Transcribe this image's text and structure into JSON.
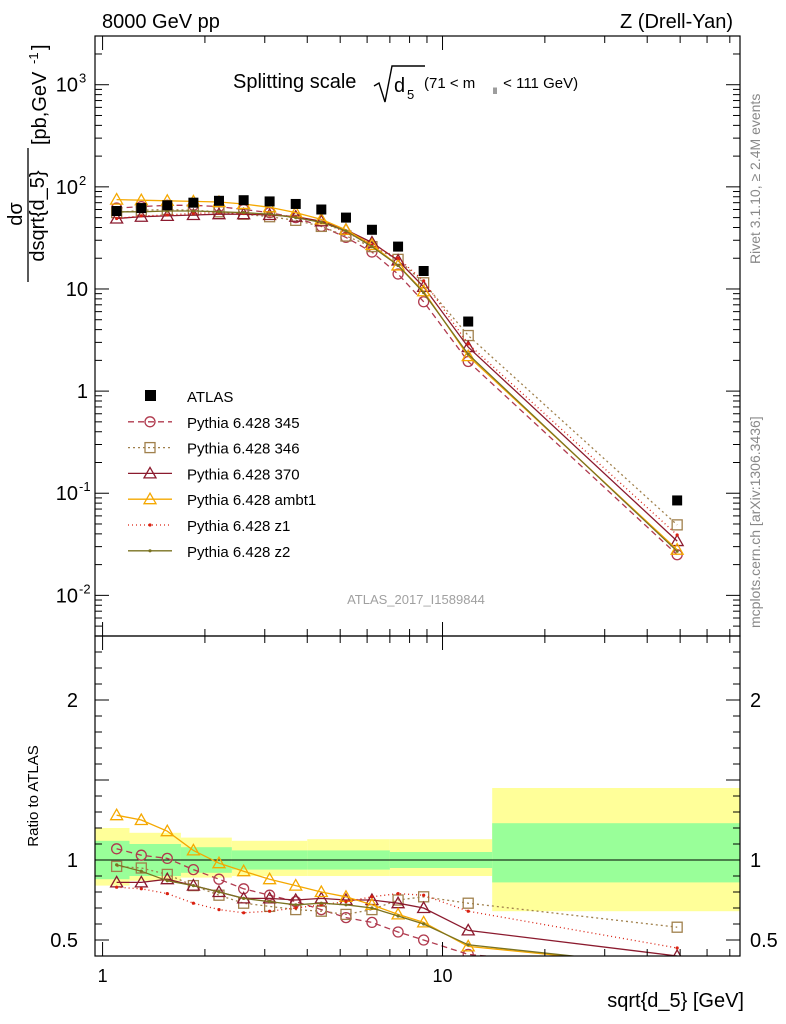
{
  "header": {
    "left": "8000 GeV pp",
    "right": "Z (Drell-Yan)"
  },
  "title": {
    "main": "Splitting scale",
    "sqrt_var": "d",
    "sqrt_sub": "5",
    "range_open": "(71 < m",
    "range_sub": "ll",
    "range_close": " < 111 GeV)"
  },
  "side_labels": {
    "rivet": "Rivet 3.1.10, ≥ 2.4M events",
    "mcplots": "mcplots.cern.ch [arXiv:1306.3436]"
  },
  "analysis_label": "ATLAS_2017_I1589844",
  "ylabel_main": {
    "num": "dσ",
    "den": "dsqrt{d_5}",
    "unit": "[pb,GeV",
    "unit_sup": "-1",
    "unit_close": "]"
  },
  "ylabel_ratio": "Ratio to ATLAS",
  "xlabel": "sqrt{d_5} [GeV]",
  "chart_data": {
    "type": "scatter",
    "x_scale": "log",
    "main_y_scale": "log",
    "xlim": [
      0.95,
      75
    ],
    "main_ylim": [
      0.004,
      3000
    ],
    "ratio_ylim": [
      0.4,
      2.4
    ],
    "x": [
      1.1,
      1.3,
      1.55,
      1.85,
      2.2,
      2.6,
      3.1,
      3.7,
      4.4,
      5.2,
      6.2,
      7.4,
      8.8,
      11.9,
      49.0
    ],
    "x_ticks": [
      {
        "v": 1,
        "label": "1"
      },
      {
        "v": 10,
        "label": "10"
      }
    ],
    "main_y_ticks": [
      {
        "v": 0.01,
        "base": "10",
        "exp": "-2"
      },
      {
        "v": 0.1,
        "base": "10",
        "exp": "-1"
      },
      {
        "v": 1,
        "base": "1",
        "exp": ""
      },
      {
        "v": 10,
        "base": "10",
        "exp": ""
      },
      {
        "v": 100,
        "base": "10",
        "exp": "2"
      },
      {
        "v": 1000,
        "base": "10",
        "exp": "3"
      }
    ],
    "ratio_y_ticks": [
      {
        "v": 0.5,
        "label": "0.5"
      },
      {
        "v": 1,
        "label": "1"
      },
      {
        "v": 2,
        "label": "2"
      }
    ],
    "data": {
      "name": "ATLAS",
      "values": [
        58,
        62,
        66,
        70,
        73,
        74,
        72,
        68,
        60,
        50,
        38,
        26,
        15,
        4.8,
        0.085
      ],
      "band_inner": [
        {
          "x0": 0.95,
          "x1": 1.2,
          "lo": 0.88,
          "hi": 1.12
        },
        {
          "x0": 1.2,
          "x1": 1.7,
          "lo": 0.9,
          "hi": 1.1
        },
        {
          "x0": 1.7,
          "x1": 2.4,
          "lo": 0.92,
          "hi": 1.08
        },
        {
          "x0": 2.4,
          "x1": 4.0,
          "lo": 0.94,
          "hi": 1.06
        },
        {
          "x0": 4.0,
          "x1": 7.0,
          "lo": 0.94,
          "hi": 1.06
        },
        {
          "x0": 7.0,
          "x1": 14.0,
          "lo": 0.95,
          "hi": 1.05
        },
        {
          "x0": 14.0,
          "x1": 75,
          "lo": 0.86,
          "hi": 1.23
        }
      ],
      "band_outer": [
        {
          "x0": 0.95,
          "x1": 1.2,
          "lo": 0.84,
          "hi": 1.2
        },
        {
          "x0": 1.2,
          "x1": 1.7,
          "lo": 0.87,
          "hi": 1.17
        },
        {
          "x0": 1.7,
          "x1": 2.4,
          "lo": 0.89,
          "hi": 1.14
        },
        {
          "x0": 2.4,
          "x1": 4.0,
          "lo": 0.9,
          "hi": 1.12
        },
        {
          "x0": 4.0,
          "x1": 7.0,
          "lo": 0.9,
          "hi": 1.13
        },
        {
          "x0": 7.0,
          "x1": 14.0,
          "lo": 0.9,
          "hi": 1.13
        },
        {
          "x0": 14.0,
          "x1": 75,
          "lo": 0.68,
          "hi": 1.45
        }
      ]
    },
    "series": [
      {
        "name": "Pythia 6.428 345",
        "color": "#b03a4e",
        "marker": "circle",
        "dash": "6,4",
        "values": [
          62,
          64,
          66,
          66,
          64,
          60,
          56,
          50,
          41,
          32,
          23,
          14,
          7.5,
          1.95,
          0.025
        ],
        "ratio": [
          1.07,
          1.03,
          1.01,
          0.94,
          0.88,
          0.82,
          0.78,
          0.74,
          0.69,
          0.64,
          0.61,
          0.55,
          0.5,
          0.41,
          0.29
        ]
      },
      {
        "name": "Pythia 6.428 346",
        "color": "#a0804c",
        "marker": "square",
        "dash": "2,3",
        "values": [
          56,
          59,
          60,
          59,
          57,
          54,
          51,
          47,
          41,
          33,
          26,
          19.5,
          11.5,
          3.5,
          0.049
        ],
        "ratio": [
          0.96,
          0.95,
          0.91,
          0.84,
          0.78,
          0.73,
          0.71,
          0.69,
          0.68,
          0.66,
          0.69,
          0.75,
          0.77,
          0.73,
          0.58
        ]
      },
      {
        "name": "Pythia 6.428 370",
        "color": "#8b1a2e",
        "marker": "triangle",
        "dash": "",
        "values": [
          49,
          51,
          52,
          53,
          54,
          54,
          53,
          51,
          46,
          38,
          28.5,
          19,
          10.5,
          2.7,
          0.034
        ],
        "ratio": [
          0.86,
          0.86,
          0.88,
          0.84,
          0.8,
          0.76,
          0.76,
          0.75,
          0.76,
          0.75,
          0.75,
          0.73,
          0.7,
          0.56,
          0.4
        ]
      },
      {
        "name": "Pythia 6.428 ambt1",
        "color": "#f5a800",
        "marker": "triangle",
        "dash": "",
        "values": [
          75,
          74,
          73,
          72,
          71,
          68,
          63,
          56,
          48,
          38,
          27,
          17,
          9.5,
          2.2,
          0.028
        ],
        "ratio": [
          1.28,
          1.25,
          1.18,
          1.06,
          0.98,
          0.93,
          0.88,
          0.84,
          0.8,
          0.77,
          0.72,
          0.66,
          0.61,
          0.46,
          0.33
        ]
      },
      {
        "name": "Pythia 6.428 z1",
        "color": "#d92010",
        "marker": "dot",
        "dash": "1,3",
        "values": [
          49,
          52,
          53,
          55,
          56,
          55,
          53,
          51,
          45,
          36,
          27,
          20,
          12,
          2.9,
          0.039
        ],
        "ratio": [
          0.83,
          0.82,
          0.79,
          0.73,
          0.69,
          0.67,
          0.68,
          0.7,
          0.72,
          0.74,
          0.77,
          0.79,
          0.78,
          0.68,
          0.45
        ]
      },
      {
        "name": "Pythia 6.428 z2",
        "color": "#7a7220",
        "marker": "dot",
        "dash": "",
        "values": [
          57,
          57,
          58,
          58,
          57,
          56,
          54,
          50,
          45,
          37,
          26,
          17,
          9.2,
          2.3,
          0.027
        ],
        "ratio": [
          0.97,
          0.93,
          0.87,
          0.84,
          0.8,
          0.76,
          0.74,
          0.72,
          0.73,
          0.72,
          0.7,
          0.65,
          0.6,
          0.47,
          0.33
        ]
      }
    ]
  }
}
